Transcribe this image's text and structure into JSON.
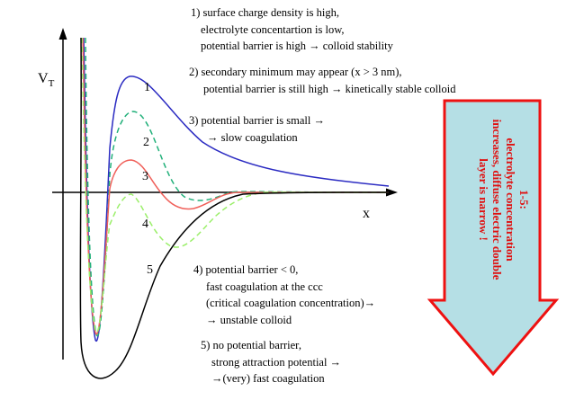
{
  "axes": {
    "y_label_main": "V",
    "y_label_sub": "T",
    "x_label": "x"
  },
  "curve_labels": [
    "1",
    "2",
    "3",
    "4",
    "5"
  ],
  "colors": {
    "curve1": "#2b2bc2",
    "curve2": "#22b07a",
    "curve3": "#f0605a",
    "curve4": "#9bef6a",
    "curve5": "#000000",
    "arrow_fill": "#b5dfe5",
    "arrow_stroke": "#ee1111",
    "arrow_text": "#e01010"
  },
  "notes": {
    "n1": [
      "1) surface charge density is high,",
      "electrolyte concentartion is low,",
      "potential barrier is high → colloid stability"
    ],
    "n2": [
      "2) secondary minimum may appear (x > 3 nm),",
      "potential barrier is still high → kinetically stable colloid"
    ],
    "n3": [
      "3) potential barrier is small →",
      "→ slow coagulation"
    ],
    "n4": [
      "4) potential barrier < 0,",
      "fast coagulation at the ccc",
      "(critical coagulation concentration)→",
      "→ unstable colloid"
    ],
    "n5": [
      "5) no potential barrier,",
      "strong attraction potential →",
      "→(very) fast coagulation"
    ]
  },
  "arrow_text": [
    "1-5:",
    "electrolyte concentration",
    "increases, diffuse electric double",
    "layer is narrow !"
  ]
}
